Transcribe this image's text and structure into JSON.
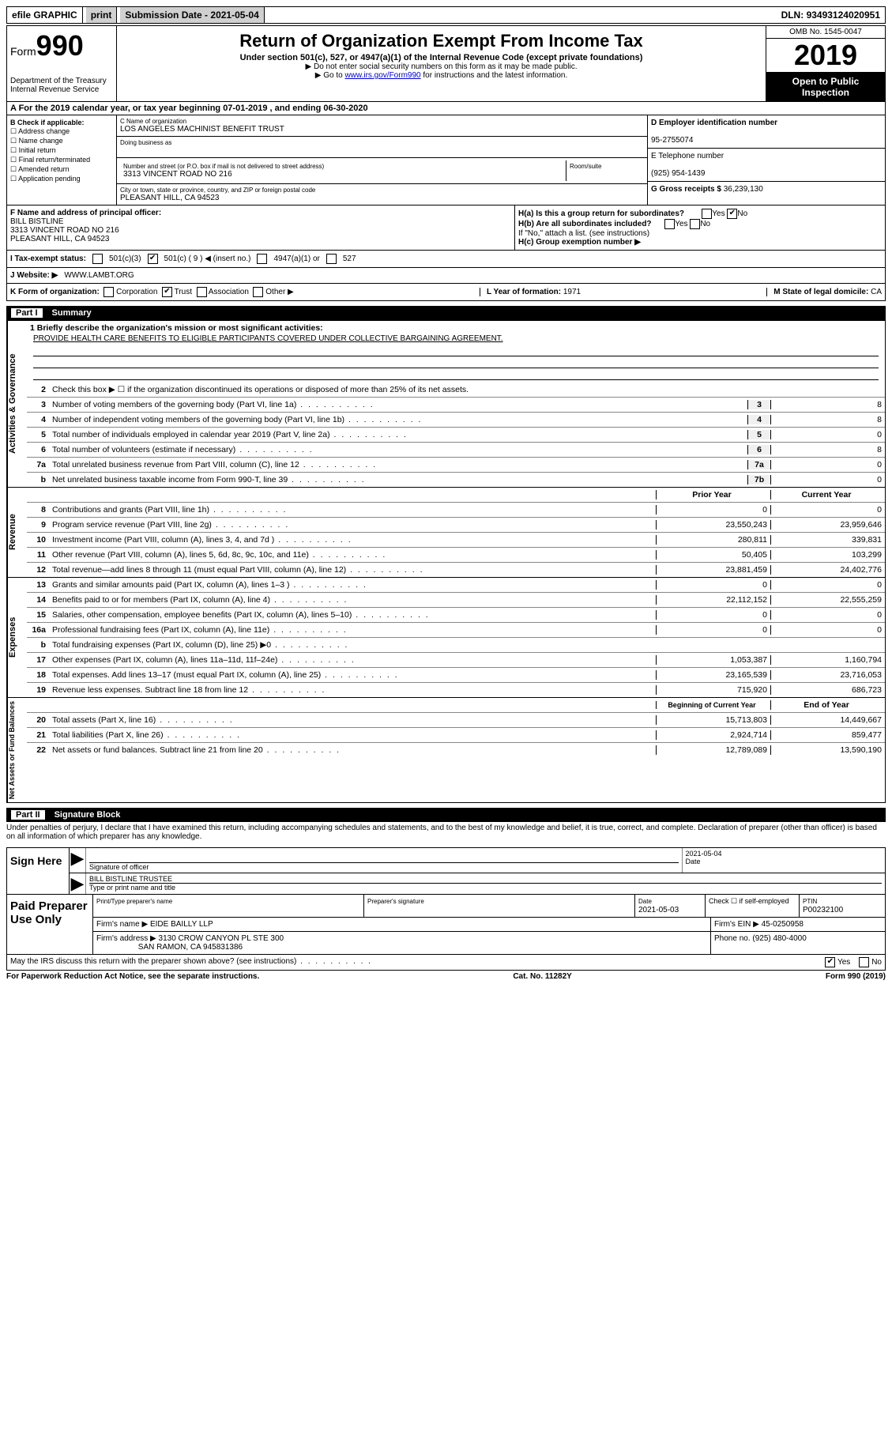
{
  "topbar": {
    "efile": "efile GRAPHIC",
    "print": "print",
    "subdate_label": "Submission Date - ",
    "subdate": "2021-05-04",
    "dln_label": "DLN: ",
    "dln": "93493124020951"
  },
  "header": {
    "form_label": "Form",
    "form_num": "990",
    "dept": "Department of the Treasury\nInternal Revenue Service",
    "title": "Return of Organization Exempt From Income Tax",
    "sub1": "Under section 501(c), 527, or 4947(a)(1) of the Internal Revenue Code (except private foundations)",
    "sub2": "▶ Do not enter social security numbers on this form as it may be made public.",
    "sub3_pre": "▶ Go to ",
    "sub3_link": "www.irs.gov/Form990",
    "sub3_post": " for instructions and the latest information.",
    "omb": "OMB No. 1545-0047",
    "year": "2019",
    "open": "Open to Public Inspection"
  },
  "rowA": {
    "text": "A For the 2019 calendar year, or tax year beginning 07-01-2019    , and ending 06-30-2020"
  },
  "colB": {
    "label": "B Check if applicable:",
    "opts": [
      "Address change",
      "Name change",
      "Initial return",
      "Final return/terminated",
      "Amended return",
      "Application pending"
    ]
  },
  "colC": {
    "name_label": "C Name of organization",
    "name": "LOS ANGELES MACHINIST BENEFIT TRUST",
    "dba_label": "Doing business as",
    "street_label": "Number and street (or P.O. box if mail is not delivered to street address)",
    "room_label": "Room/suite",
    "street": "3313 VINCENT ROAD NO 216",
    "city_label": "City or town, state or province, country, and ZIP or foreign postal code",
    "city": "PLEASANT HILL, CA  94523"
  },
  "colD": {
    "ein_label": "D Employer identification number",
    "ein": "95-2755074",
    "phone_label": "E Telephone number",
    "phone": "(925) 954-1439",
    "gross_label": "G Gross receipts $ ",
    "gross": "36,239,130"
  },
  "fgh": {
    "f_label": "F Name and address of principal officer:",
    "f_name": "BILL BISTLINE",
    "f_addr1": "3313 VINCENT ROAD NO 216",
    "f_addr2": "PLEASANT HILL, CA  94523",
    "ha_label": "H(a)  Is this a group return for subordinates?",
    "hb_label": "H(b)  Are all subordinates included?",
    "hb_note": "If \"No,\" attach a list. (see instructions)",
    "hc_label": "H(c)  Group exemption number ▶",
    "yes": "Yes",
    "no": "No"
  },
  "tax": {
    "i_label": "I  Tax-exempt status:",
    "opt1": "501(c)(3)",
    "opt2_pre": "501(c) ( ",
    "opt2_num": "9",
    "opt2_post": " ) ◀ (insert no.)",
    "opt3": "4947(a)(1) or",
    "opt4": "527"
  },
  "j": {
    "label": "J  Website: ▶ ",
    "val": "WWW.LAMBT.ORG"
  },
  "k": {
    "label": "K Form of organization:",
    "opts": [
      "Corporation",
      "Trust",
      "Association",
      "Other ▶"
    ],
    "checked": 1,
    "l_label": "L Year of formation: ",
    "l_val": "1971",
    "m_label": "M State of legal domicile: ",
    "m_val": "CA"
  },
  "part1": {
    "label": "Part I",
    "title": "Summary"
  },
  "governance": {
    "side": "Activities & Governance",
    "l1_label": "1  Briefly describe the organization's mission or most significant activities:",
    "l1_text": "PROVIDE HEALTH CARE BENEFITS TO ELIGIBLE PARTICIPANTS COVERED UNDER COLLECTIVE BARGAINING AGREEMENT.",
    "l2": "Check this box ▶ ☐  if the organization discontinued its operations or disposed of more than 25% of its net assets.",
    "lines": [
      {
        "n": "3",
        "t": "Number of voting members of the governing body (Part VI, line 1a)",
        "b": "3",
        "v": "8"
      },
      {
        "n": "4",
        "t": "Number of independent voting members of the governing body (Part VI, line 1b)",
        "b": "4",
        "v": "8"
      },
      {
        "n": "5",
        "t": "Total number of individuals employed in calendar year 2019 (Part V, line 2a)",
        "b": "5",
        "v": "0"
      },
      {
        "n": "6",
        "t": "Total number of volunteers (estimate if necessary)",
        "b": "6",
        "v": "8"
      },
      {
        "n": "7a",
        "t": "Total unrelated business revenue from Part VIII, column (C), line 12",
        "b": "7a",
        "v": "0"
      },
      {
        "n": "b",
        "t": "Net unrelated business taxable income from Form 990-T, line 39",
        "b": "7b",
        "v": "0"
      }
    ]
  },
  "revenue": {
    "side": "Revenue",
    "header_prior": "Prior Year",
    "header_current": "Current Year",
    "lines": [
      {
        "n": "8",
        "t": "Contributions and grants (Part VIII, line 1h)",
        "p": "0",
        "c": "0"
      },
      {
        "n": "9",
        "t": "Program service revenue (Part VIII, line 2g)",
        "p": "23,550,243",
        "c": "23,959,646"
      },
      {
        "n": "10",
        "t": "Investment income (Part VIII, column (A), lines 3, 4, and 7d )",
        "p": "280,811",
        "c": "339,831"
      },
      {
        "n": "11",
        "t": "Other revenue (Part VIII, column (A), lines 5, 6d, 8c, 9c, 10c, and 11e)",
        "p": "50,405",
        "c": "103,299"
      },
      {
        "n": "12",
        "t": "Total revenue—add lines 8 through 11 (must equal Part VIII, column (A), line 12)",
        "p": "23,881,459",
        "c": "24,402,776"
      }
    ]
  },
  "expenses": {
    "side": "Expenses",
    "lines": [
      {
        "n": "13",
        "t": "Grants and similar amounts paid (Part IX, column (A), lines 1–3 )",
        "p": "0",
        "c": "0"
      },
      {
        "n": "14",
        "t": "Benefits paid to or for members (Part IX, column (A), line 4)",
        "p": "22,112,152",
        "c": "22,555,259"
      },
      {
        "n": "15",
        "t": "Salaries, other compensation, employee benefits (Part IX, column (A), lines 5–10)",
        "p": "0",
        "c": "0"
      },
      {
        "n": "16a",
        "t": "Professional fundraising fees (Part IX, column (A), line 11e)",
        "p": "0",
        "c": "0"
      },
      {
        "n": "b",
        "t": "Total fundraising expenses (Part IX, column (D), line 25) ▶0",
        "p": "",
        "c": "",
        "grey": true
      },
      {
        "n": "17",
        "t": "Other expenses (Part IX, column (A), lines 11a–11d, 11f–24e)",
        "p": "1,053,387",
        "c": "1,160,794"
      },
      {
        "n": "18",
        "t": "Total expenses. Add lines 13–17 (must equal Part IX, column (A), line 25)",
        "p": "23,165,539",
        "c": "23,716,053"
      },
      {
        "n": "19",
        "t": "Revenue less expenses. Subtract line 18 from line 12",
        "p": "715,920",
        "c": "686,723"
      }
    ]
  },
  "netassets": {
    "side": "Net Assets or Fund Balances",
    "header_begin": "Beginning of Current Year",
    "header_end": "End of Year",
    "lines": [
      {
        "n": "20",
        "t": "Total assets (Part X, line 16)",
        "p": "15,713,803",
        "c": "14,449,667"
      },
      {
        "n": "21",
        "t": "Total liabilities (Part X, line 26)",
        "p": "2,924,714",
        "c": "859,477"
      },
      {
        "n": "22",
        "t": "Net assets or fund balances. Subtract line 21 from line 20",
        "p": "12,789,089",
        "c": "13,590,190"
      }
    ]
  },
  "part2": {
    "label": "Part II",
    "title": "Signature Block"
  },
  "penalties": "Under penalties of perjury, I declare that I have examined this return, including accompanying schedules and statements, and to the best of my knowledge and belief, it is true, correct, and complete. Declaration of preparer (other than officer) is based on all information of which preparer has any knowledge.",
  "sign": {
    "left": "Sign Here",
    "sig_label": "Signature of officer",
    "date_label": "Date",
    "date": "2021-05-04",
    "name": "BILL BISTLINE  TRUSTEE",
    "name_label": "Type or print name and title"
  },
  "prep": {
    "left": "Paid Preparer Use Only",
    "r1": {
      "c1_label": "Print/Type preparer's name",
      "c2_label": "Preparer's signature",
      "c3_label": "Date",
      "c3": "2021-05-03",
      "c4_label": "Check ☐ if self-employed",
      "c5_label": "PTIN",
      "c5": "P00232100"
    },
    "r2": {
      "c1_label": "Firm's name    ▶ ",
      "c1": "EIDE BAILLY LLP",
      "c2_label": "Firm's EIN ▶ ",
      "c2": "45-0250958"
    },
    "r3": {
      "c1_label": "Firm's address ▶ ",
      "c1a": "3130 CROW CANYON PL STE 300",
      "c1b": "SAN RAMON, CA  945831386",
      "c2_label": "Phone no. ",
      "c2": "(925) 480-4000"
    }
  },
  "discuss": {
    "text": "May the IRS discuss this return with the preparer shown above? (see instructions)",
    "yes": "Yes",
    "no": "No"
  },
  "footer": {
    "left": "For Paperwork Reduction Act Notice, see the separate instructions.",
    "mid": "Cat. No. 11282Y",
    "right": "Form 990 (2019)"
  }
}
